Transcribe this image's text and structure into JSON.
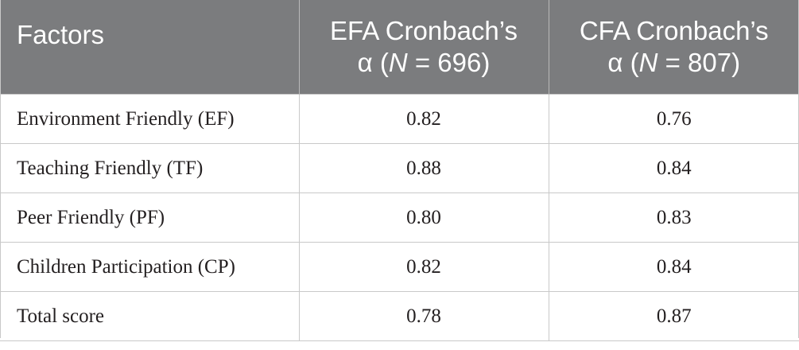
{
  "header": {
    "col1": "Factors",
    "col2_line1": "EFA Cronbach’s",
    "col2_alpha": "α (",
    "col2_n": "N",
    "col2_rest": " = 696)",
    "col3_line1": "CFA Cronbach’s",
    "col3_alpha": "α (",
    "col3_n": "N",
    "col3_rest": " = 807)"
  },
  "rows": [
    {
      "factor": "Environment Friendly (EF)",
      "efa": "0.82",
      "cfa": "0.76"
    },
    {
      "factor": "Teaching Friendly (TF)",
      "efa": "0.88",
      "cfa": "0.84"
    },
    {
      "factor": "Peer Friendly (PF)",
      "efa": "0.80",
      "cfa": "0.83"
    },
    {
      "factor": "Children Participation (CP)",
      "efa": "0.82",
      "cfa": "0.84"
    },
    {
      "factor": "Total score",
      "efa": "0.78",
      "cfa": "0.87"
    }
  ],
  "colors": {
    "header_bg": "#7b7c7e",
    "header_text": "#ffffff",
    "body_text": "#231f20",
    "grid_line": "#c9c9c9"
  }
}
